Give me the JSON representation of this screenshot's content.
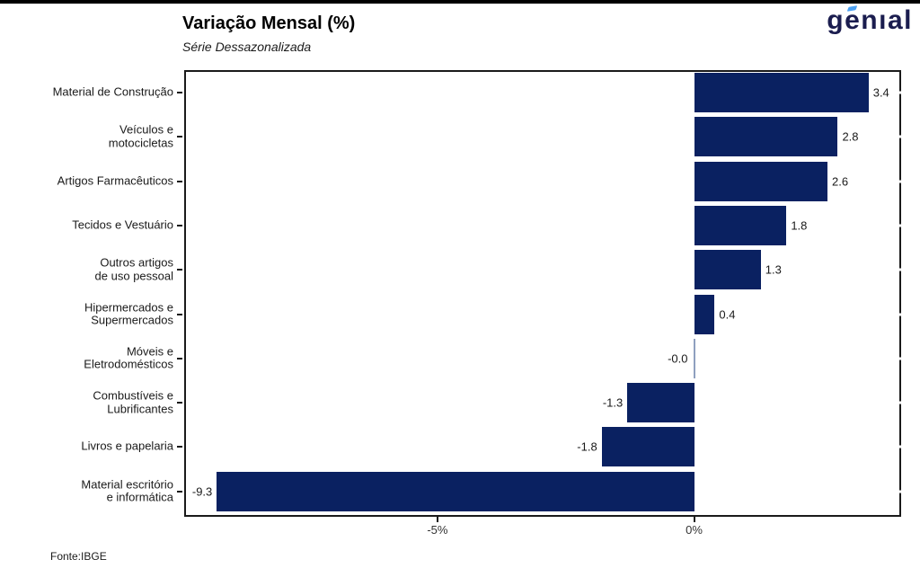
{
  "header": {
    "title": "Variação Mensal (%)",
    "subtitle": "Série Dessazonalizada"
  },
  "logo": {
    "text": "genıal",
    "text_color": "#1b1d4f",
    "accent_color": "#4ba1f3"
  },
  "footer": {
    "source": "Fonte:IBGE"
  },
  "chart_data": {
    "type": "bar",
    "orientation": "horizontal",
    "title": "Variação Mensal (%)",
    "subtitle": "Série Dessazonalizada",
    "source": "Fonte:IBGE",
    "categories": [
      "Material de Construção",
      "Veículos e\nmotocicletas",
      "Artigos Farmacêuticos",
      "Tecidos e Vestuário",
      "Outros artigos\nde uso pessoal",
      "Hipermercados e\nSupermercados",
      "Móveis e\nEletrodomésticos",
      "Combustíveis e\nLubrificantes",
      "Livros e papelaria",
      "Material escritório\ne informática"
    ],
    "values": [
      3.4,
      2.8,
      2.6,
      1.8,
      1.3,
      0.4,
      -0.0,
      -1.3,
      -1.8,
      -9.3
    ],
    "value_labels": [
      "3.4",
      "2.8",
      "2.6",
      "1.8",
      "1.3",
      "0.4",
      "-0.0",
      "-1.3",
      "-1.8",
      "-9.3"
    ],
    "xlim": [
      -9.935,
      4.035
    ],
    "x_ticks": [
      {
        "value": -5,
        "label": "-5%"
      },
      {
        "value": 0,
        "label": "0%"
      }
    ],
    "bar_color": "#0a2161",
    "zero_bar_color": "#8fa0bf",
    "grid": false,
    "legend": null
  }
}
